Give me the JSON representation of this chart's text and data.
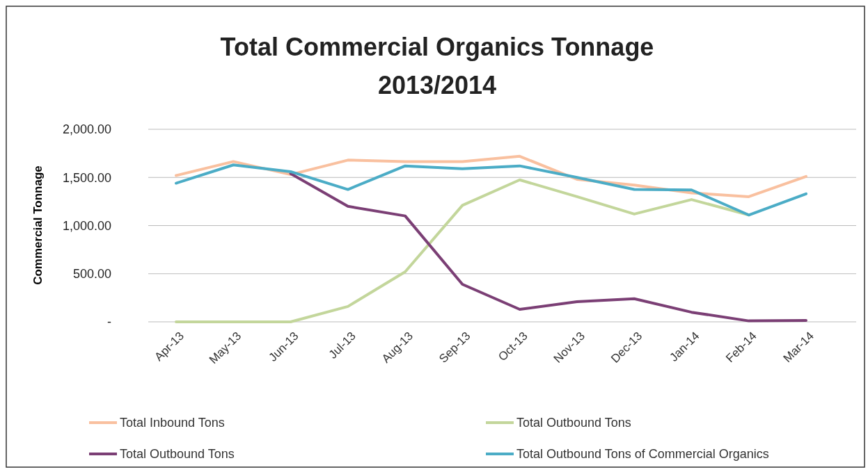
{
  "chart_data": {
    "type": "line",
    "title": "Total Commercial Organics Tonnage\n2013/2014",
    "ylabel": "Commercial Tonnage",
    "categories": [
      "Apr-13",
      "May-13",
      "Jun-13",
      "Jul-13",
      "Aug-13",
      "Sep-13",
      "Oct-13",
      "Nov-13",
      "Dec-13",
      "Jan-14",
      "Feb-14",
      "Mar-14"
    ],
    "ylim": [
      0,
      2000
    ],
    "yticks": [
      {
        "value": 0,
        "label": "-"
      },
      {
        "value": 500,
        "label": "500.00"
      },
      {
        "value": 1000,
        "label": "1,000.00"
      },
      {
        "value": 1500,
        "label": "1,500.00"
      },
      {
        "value": 2000,
        "label": "2,000.00"
      }
    ],
    "grid": "y",
    "legend": "bottom",
    "marker": "none",
    "line_style": "solid",
    "series": [
      {
        "name": "Total Inbound Tons",
        "color": "#f9c09f",
        "values": [
          1520,
          1665,
          1530,
          1680,
          1665,
          1665,
          1720,
          1480,
          1420,
          1340,
          1300,
          1510
        ]
      },
      {
        "name": "Total Outbound Tons",
        "color": "#c3d69b",
        "values": [
          0,
          0,
          0,
          160,
          520,
          1210,
          1475,
          1300,
          1120,
          1270,
          1110,
          null
        ]
      },
      {
        "name": "Total Outbound Tons",
        "color": "#7b3f75",
        "values": [
          null,
          null,
          1540,
          1200,
          1100,
          390,
          130,
          210,
          240,
          100,
          10,
          15
        ]
      },
      {
        "name": "Total Outbound Tons of Commercial Organics",
        "color": "#4bacc6",
        "values": [
          1440,
          1630,
          1560,
          1375,
          1620,
          1590,
          1620,
          1500,
          1375,
          1370,
          1110,
          1330
        ]
      }
    ]
  }
}
